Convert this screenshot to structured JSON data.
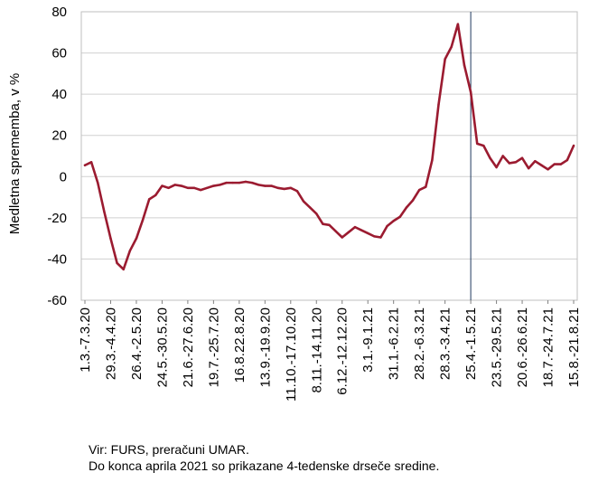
{
  "chart_data": {
    "type": "line",
    "title": "",
    "xlabel": "",
    "ylabel": "Medletna sprememba, v %",
    "ylim": [
      -60,
      80
    ],
    "yticks": [
      -60,
      -40,
      -20,
      0,
      20,
      40,
      60,
      80
    ],
    "x_tick_labels": [
      "1.3.-7.3.20",
      "29.3.-4.4.20",
      "26.4.-2.5.20",
      "24.5.-30.5.20",
      "21.6.-27.6.20",
      "19.7.-25.7.20",
      "16.8.22.8.20",
      "13.9.-19.9.20",
      "11.10.-17.10.20",
      "8.11.-14.11.20",
      "6.12.-12.12.20",
      "3.1.-9.1.21",
      "31.1.-6.2.21",
      "28.2.-6.3.21",
      "28.3.-3.4.21",
      "25.4.-1.5.21",
      "23.5.-29.5.21",
      "20.6.-26.6.21",
      "18.7.-24.7.21",
      "15.8.-21.8.21"
    ],
    "grid": true,
    "vertical_marker_after_week": 60,
    "series": [
      {
        "color": "#9b1b30",
        "values": [
          5.5,
          7,
          -3,
          -17,
          -30,
          -42,
          -45,
          -36,
          -30,
          -21,
          -11,
          -9,
          -4.5,
          -5.5,
          -4,
          -4.5,
          -5.5,
          -5.5,
          -6.5,
          -5.5,
          -4.5,
          -4,
          -3,
          -3,
          -3,
          -2.5,
          -3,
          -4,
          -4.5,
          -4.5,
          -5.5,
          -6,
          -5.5,
          -7,
          -12,
          -15,
          -18,
          -23,
          -23.5,
          -26.5,
          -29.5,
          -27,
          -24.5,
          -26,
          -27.5,
          -29,
          -29.5,
          -24,
          -21.5,
          -19.5,
          -15,
          -11.5,
          -6.5,
          -5,
          8,
          35,
          57,
          63,
          74,
          54,
          41,
          16,
          15,
          9,
          4.5,
          10,
          6.5,
          7,
          9,
          4,
          7.5,
          5.5,
          3.5,
          6,
          6,
          8,
          15
        ]
      }
    ]
  },
  "notes": {
    "source": "Vir: FURS, preračuni UMAR.",
    "method": "Do konca aprila 2021 so prikazane 4-tedenske drseče sredine."
  }
}
